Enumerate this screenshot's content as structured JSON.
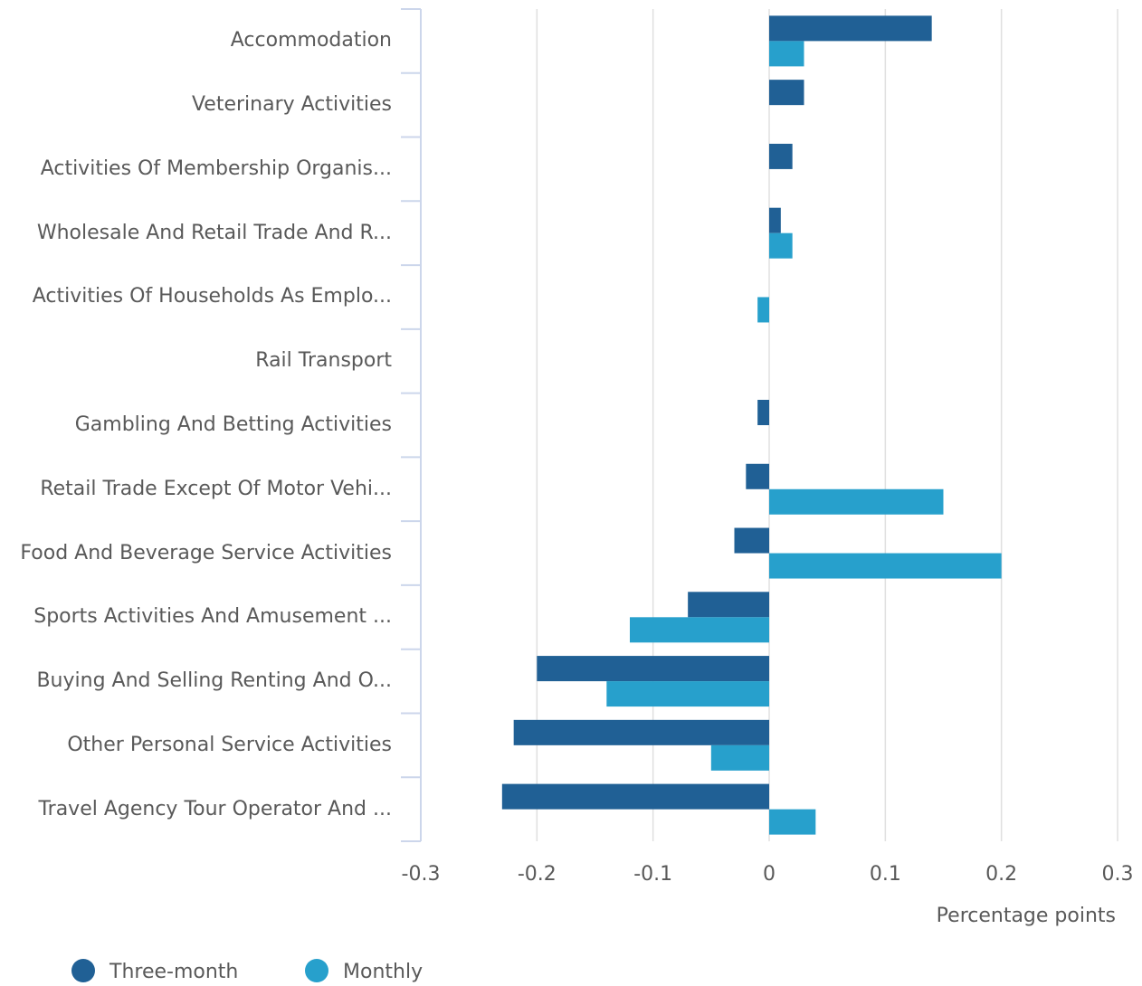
{
  "chart_data": {
    "type": "bar",
    "orientation": "horizontal",
    "categories": [
      "Accommodation",
      "Veterinary Activities",
      "Activities Of Membership Organis...",
      "Wholesale And Retail Trade And R...",
      "Activities Of Households As Emplo...",
      "Rail Transport",
      "Gambling And Betting Activities",
      "Retail Trade Except Of Motor Vehi...",
      "Food And Beverage Service Activities",
      "Sports Activities And Amusement ...",
      "Buying And Selling Renting And O...",
      "Other Personal Service Activities",
      "Travel Agency Tour Operator And ..."
    ],
    "series": [
      {
        "name": "Three-month",
        "color": "#206095",
        "values": [
          0.14,
          0.03,
          0.02,
          0.01,
          0,
          0,
          -0.01,
          -0.02,
          -0.03,
          -0.07,
          -0.2,
          -0.22,
          -0.23
        ]
      },
      {
        "name": "Monthly",
        "color": "#27a0cc",
        "values": [
          0.03,
          0,
          0,
          0.02,
          -0.01,
          0,
          0,
          0.15,
          0.2,
          -0.12,
          -0.14,
          -0.05,
          0.04
        ]
      }
    ],
    "xlim": [
      -0.3,
      0.3
    ],
    "xticks": [
      -0.3,
      -0.2,
      -0.1,
      0,
      0.1,
      0.2,
      0.3
    ],
    "xlabel": "Percentage points",
    "grid": true,
    "legend": "bottom-left"
  }
}
